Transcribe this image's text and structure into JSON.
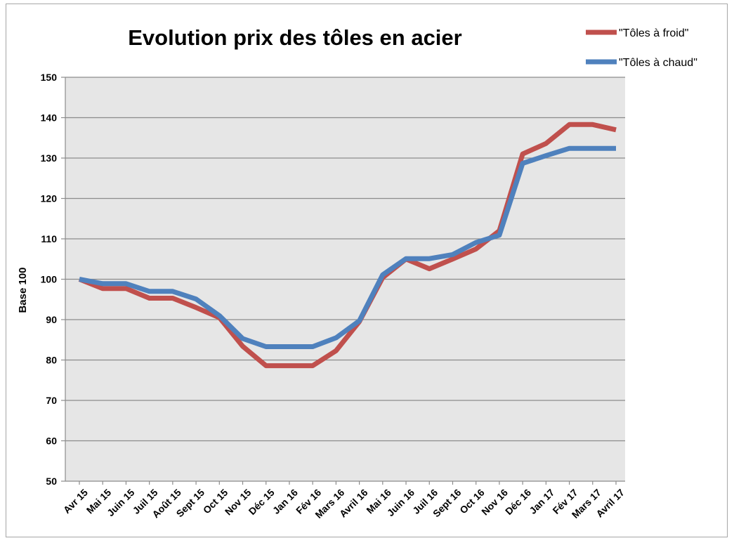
{
  "chart_data": {
    "type": "line",
    "title": "Evolution prix des tôles en acier",
    "ylabel": "Base 100",
    "xlabel": "",
    "ylim": [
      50,
      150
    ],
    "yticks": [
      50,
      60,
      70,
      80,
      90,
      100,
      110,
      120,
      130,
      140,
      150
    ],
    "grid": true,
    "legend_position": "top-right",
    "plot_background": "#e6e6e6",
    "categories": [
      "Avr 15",
      "Mai 15",
      "Juin 15",
      "Juil 15",
      "Août 15",
      "Sept 15",
      "Oct 15",
      "Nov 15",
      "Déc 15",
      "Jan 16",
      "Fév 16",
      "Mars 16",
      "Avril 16",
      "Mai 16",
      "Juin 16",
      "Juil 16",
      "Sept 16",
      "Oct 16",
      "Nov 16",
      "Déc 16",
      "Jan 17",
      "Fév 17",
      "Mars 17",
      "Avril 17"
    ],
    "series": [
      {
        "name": "\"Tôles à froid\"",
        "color": "#c0504d",
        "values": [
          100,
          97.7,
          97.7,
          95.3,
          95.3,
          93,
          90.5,
          83.4,
          78.6,
          78.6,
          78.6,
          82.3,
          89.5,
          100.4,
          105,
          102.6,
          105,
          107.5,
          112,
          131,
          133.6,
          138.3,
          138.3,
          137
        ]
      },
      {
        "name": "\"Tôles à chaud\"",
        "color": "#4f81bd",
        "values": [
          100,
          98.9,
          98.9,
          97,
          97,
          95.1,
          91,
          85.3,
          83.3,
          83.3,
          83.3,
          85.5,
          89.7,
          101.1,
          105.1,
          105.1,
          106.1,
          109.1,
          110.9,
          128.7,
          130.6,
          132.4,
          132.4,
          132.4
        ]
      }
    ]
  }
}
